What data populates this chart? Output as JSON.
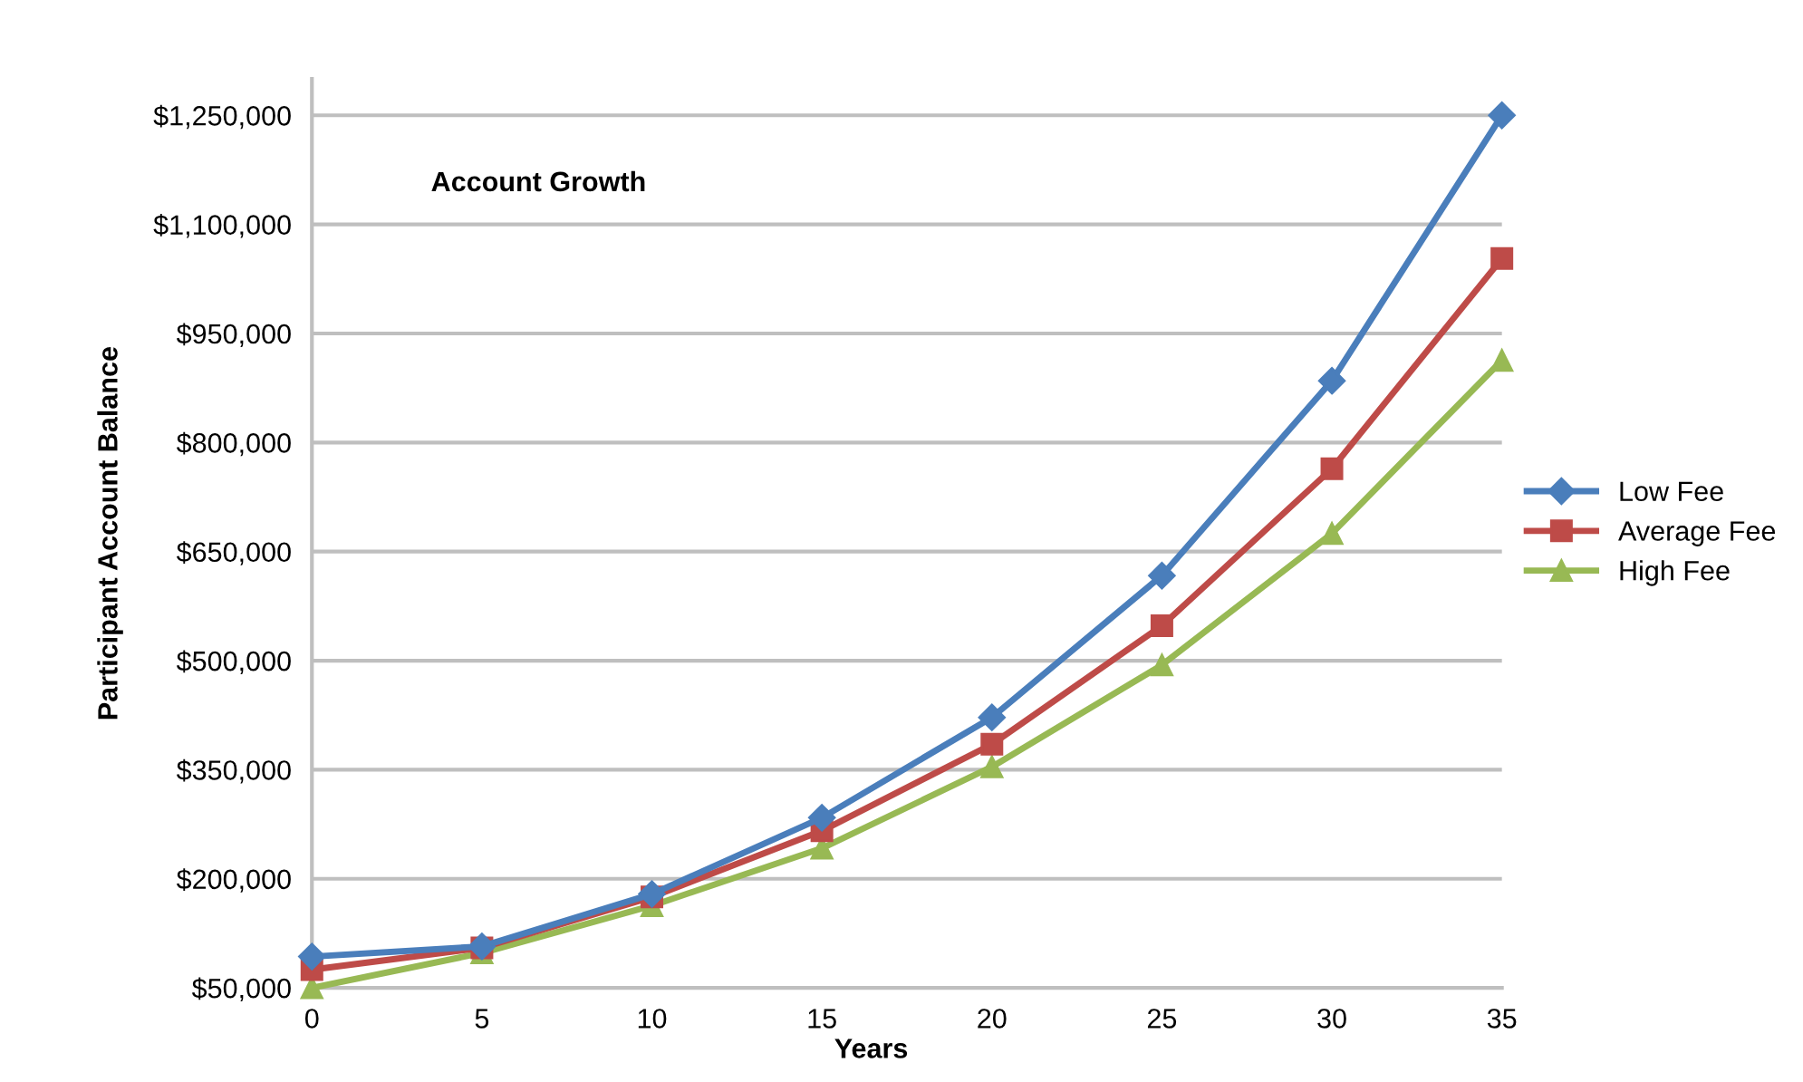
{
  "chart_data": {
    "type": "line",
    "title": "Account Growth",
    "xlabel": "Years",
    "ylabel": "Participant Account Balance",
    "categories": [
      "0",
      "5",
      "10",
      "15",
      "20",
      "25",
      "30",
      "35"
    ],
    "series": [
      {
        "name": "Low Fee",
        "color": "#4a7ebb",
        "marker": "diamond",
        "values": [
          93000,
          107000,
          179000,
          284000,
          422000,
          617000,
          885000,
          1250000
        ]
      },
      {
        "name": "Average Fee",
        "color": "#be4b48",
        "marker": "square",
        "values": [
          75000,
          105000,
          175000,
          266000,
          385000,
          548000,
          764000,
          1053000
        ]
      },
      {
        "name": "High Fee",
        "color": "#98b954",
        "marker": "triangle",
        "values": [
          50000,
          98000,
          163000,
          242000,
          354000,
          494000,
          675000,
          913000
        ]
      }
    ],
    "ylim": [
      50000,
      1300000
    ],
    "yticks": [
      {
        "value": 50000,
        "label": "$50,000"
      },
      {
        "value": 200000,
        "label": "$200,000"
      },
      {
        "value": 350000,
        "label": "$350,000"
      },
      {
        "value": 500000,
        "label": "$500,000"
      },
      {
        "value": 650000,
        "label": "$650,000"
      },
      {
        "value": 800000,
        "label": "$800,000"
      },
      {
        "value": 950000,
        "label": "$950,000"
      },
      {
        "value": 1100000,
        "label": "$1,100,000"
      },
      {
        "value": 1250000,
        "label": "$1,250,000"
      }
    ],
    "grid": "y",
    "legend": "right",
    "line_style": "solid"
  }
}
